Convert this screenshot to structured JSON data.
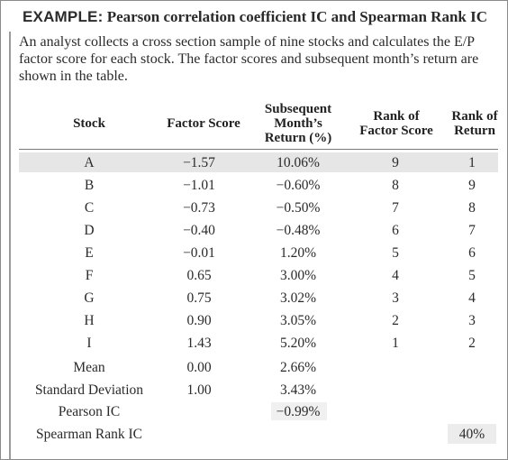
{
  "title": {
    "prefix": "EXAMPLE:",
    "text": "Pearson correlation coefficient IC and Spearman Rank IC"
  },
  "intro": "An analyst collects a cross section sample of nine stocks and calculates the E/P factor score for each stock. The factor scores and subsequent month’s return are shown in the table.",
  "table": {
    "headers": {
      "stock": "Stock",
      "factor_score": "Factor Score",
      "return_l1": "Subsequent",
      "return_l2": "Month’s",
      "return_l3": "Return (%)",
      "rank_factor_l1": "Rank of",
      "rank_factor_l2": "Factor Score",
      "rank_return_l1": "Rank of",
      "rank_return_l2": "Return"
    },
    "rows": [
      {
        "stock": "A",
        "factor": "−1.57",
        "ret": "10.06%",
        "rank_factor": "9",
        "rank_return": "1"
      },
      {
        "stock": "B",
        "factor": "−1.01",
        "ret": "−0.60%",
        "rank_factor": "8",
        "rank_return": "9"
      },
      {
        "stock": "C",
        "factor": "−0.73",
        "ret": "−0.50%",
        "rank_factor": "7",
        "rank_return": "8"
      },
      {
        "stock": "D",
        "factor": "−0.40",
        "ret": "−0.48%",
        "rank_factor": "6",
        "rank_return": "7"
      },
      {
        "stock": "E",
        "factor": "−0.01",
        "ret": "1.20%",
        "rank_factor": "5",
        "rank_return": "6"
      },
      {
        "stock": "F",
        "factor": "0.65",
        "ret": "3.00%",
        "rank_factor": "4",
        "rank_return": "5"
      },
      {
        "stock": "G",
        "factor": "0.75",
        "ret": "3.02%",
        "rank_factor": "3",
        "rank_return": "4"
      },
      {
        "stock": "H",
        "factor": "0.90",
        "ret": "3.05%",
        "rank_factor": "2",
        "rank_return": "3"
      },
      {
        "stock": "I",
        "factor": "1.43",
        "ret": "5.20%",
        "rank_factor": "1",
        "rank_return": "2"
      }
    ],
    "mean": {
      "label": "Mean",
      "factor": "0.00",
      "ret": "2.66%"
    },
    "std": {
      "label": "Standard Deviation",
      "factor": "1.00",
      "ret": "3.43%"
    },
    "pearson": {
      "label": "Pearson IC",
      "value": "−0.99%"
    },
    "spearman": {
      "label": "Spearman Rank IC",
      "value": "40%"
    }
  }
}
